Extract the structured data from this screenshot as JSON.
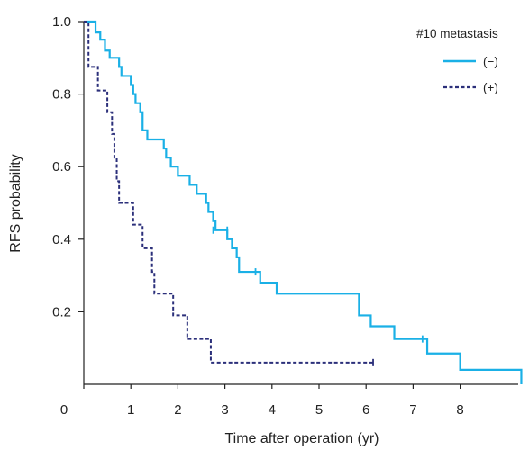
{
  "chart_data": {
    "type": "line",
    "subtype": "kaplan-meier step",
    "title": "",
    "xlabel": "Time after operation (yr)",
    "ylabel": "RFS probability",
    "xlim": [
      0,
      9.3
    ],
    "ylim": [
      0,
      1.0
    ],
    "xticks": [
      "0",
      "1",
      "2",
      "3",
      "4",
      "5",
      "6",
      "7",
      "8"
    ],
    "yticks": [
      "0.2",
      "0.4",
      "0.6",
      "0.8",
      "1.0"
    ],
    "grid": false,
    "legend": {
      "title": "#10 metastasis",
      "position": "top-right"
    },
    "series": [
      {
        "name": "(−)",
        "color": "#1ab0e6",
        "dash": "solid",
        "steps": [
          [
            0,
            1.0
          ],
          [
            0.25,
            0.97
          ],
          [
            0.35,
            0.95
          ],
          [
            0.45,
            0.92
          ],
          [
            0.55,
            0.9
          ],
          [
            0.75,
            0.875
          ],
          [
            0.8,
            0.85
          ],
          [
            1.0,
            0.825
          ],
          [
            1.05,
            0.8
          ],
          [
            1.1,
            0.775
          ],
          [
            1.2,
            0.75
          ],
          [
            1.25,
            0.7
          ],
          [
            1.35,
            0.675
          ],
          [
            1.7,
            0.65
          ],
          [
            1.75,
            0.625
          ],
          [
            1.85,
            0.6
          ],
          [
            2.0,
            0.575
          ],
          [
            2.25,
            0.55
          ],
          [
            2.4,
            0.525
          ],
          [
            2.6,
            0.5
          ],
          [
            2.65,
            0.475
          ],
          [
            2.75,
            0.45
          ],
          [
            2.8,
            0.425
          ],
          [
            3.05,
            0.4
          ],
          [
            3.15,
            0.375
          ],
          [
            3.25,
            0.35
          ],
          [
            3.3,
            0.31
          ],
          [
            3.75,
            0.28
          ],
          [
            4.1,
            0.25
          ],
          [
            5.85,
            0.19
          ],
          [
            6.1,
            0.16
          ],
          [
            6.6,
            0.125
          ],
          [
            7.3,
            0.085
          ],
          [
            8.0,
            0.04
          ],
          [
            9.3,
            0.0
          ]
        ],
        "censored": [
          [
            2.75,
            0.425
          ],
          [
            3.05,
            0.425
          ],
          [
            3.65,
            0.31
          ],
          [
            7.2,
            0.125
          ]
        ]
      },
      {
        "name": "(+)",
        "color": "#2b2f7a",
        "dash": "dashed",
        "steps": [
          [
            0,
            1.0
          ],
          [
            0.1,
            0.875
          ],
          [
            0.3,
            0.81
          ],
          [
            0.5,
            0.75
          ],
          [
            0.6,
            0.69
          ],
          [
            0.65,
            0.625
          ],
          [
            0.7,
            0.56
          ],
          [
            0.75,
            0.5
          ],
          [
            1.05,
            0.44
          ],
          [
            1.25,
            0.375
          ],
          [
            1.45,
            0.31
          ],
          [
            1.5,
            0.25
          ],
          [
            1.9,
            0.19
          ],
          [
            2.2,
            0.125
          ],
          [
            2.7,
            0.06
          ]
        ],
        "end_x": 6.15,
        "censored": [
          [
            6.15,
            0.06
          ]
        ]
      }
    ]
  }
}
